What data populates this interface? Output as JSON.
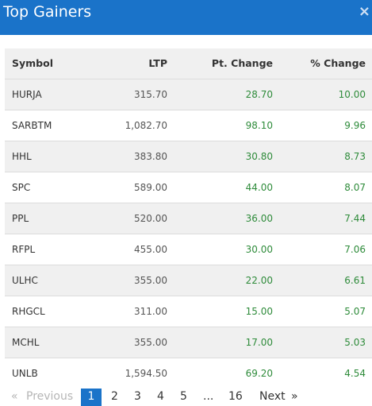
{
  "header": {
    "title": "Top Gainers",
    "close_glyph": "×",
    "close_icon": "close-icon"
  },
  "table": {
    "columns": {
      "symbol": "Symbol",
      "ltp": "LTP",
      "pt_change": "Pt. Change",
      "pct_change": "% Change"
    },
    "rows": [
      {
        "symbol": "HURJA",
        "ltp": "315.70",
        "pt_change": "28.70",
        "pct_change": "10.00"
      },
      {
        "symbol": "SARBTM",
        "ltp": "1,082.70",
        "pt_change": "98.10",
        "pct_change": "9.96"
      },
      {
        "symbol": "HHL",
        "ltp": "383.80",
        "pt_change": "30.80",
        "pct_change": "8.73"
      },
      {
        "symbol": "SPC",
        "ltp": "589.00",
        "pt_change": "44.00",
        "pct_change": "8.07"
      },
      {
        "symbol": "PPL",
        "ltp": "520.00",
        "pt_change": "36.00",
        "pct_change": "7.44"
      },
      {
        "symbol": "RFPL",
        "ltp": "455.00",
        "pt_change": "30.00",
        "pct_change": "7.06"
      },
      {
        "symbol": "ULHC",
        "ltp": "355.00",
        "pt_change": "22.00",
        "pct_change": "6.61"
      },
      {
        "symbol": "RHGCL",
        "ltp": "311.00",
        "pt_change": "15.00",
        "pct_change": "5.07"
      },
      {
        "symbol": "MCHL",
        "ltp": "355.00",
        "pt_change": "17.00",
        "pct_change": "5.03"
      },
      {
        "symbol": "UNLB",
        "ltp": "1,594.50",
        "pt_change": "69.20",
        "pct_change": "4.54"
      }
    ]
  },
  "pagination": {
    "first_glyph": "«",
    "previous_label": "Previous",
    "pages": [
      "1",
      "2",
      "3",
      "4",
      "5"
    ],
    "ellipsis": "...",
    "last_page": "16",
    "next_label": "Next",
    "last_glyph": "»",
    "current_page": "1"
  },
  "colors": {
    "header_bg": "#1a73c9",
    "positive": "#2e8b3a",
    "row_alt": "#f0f0f0"
  }
}
